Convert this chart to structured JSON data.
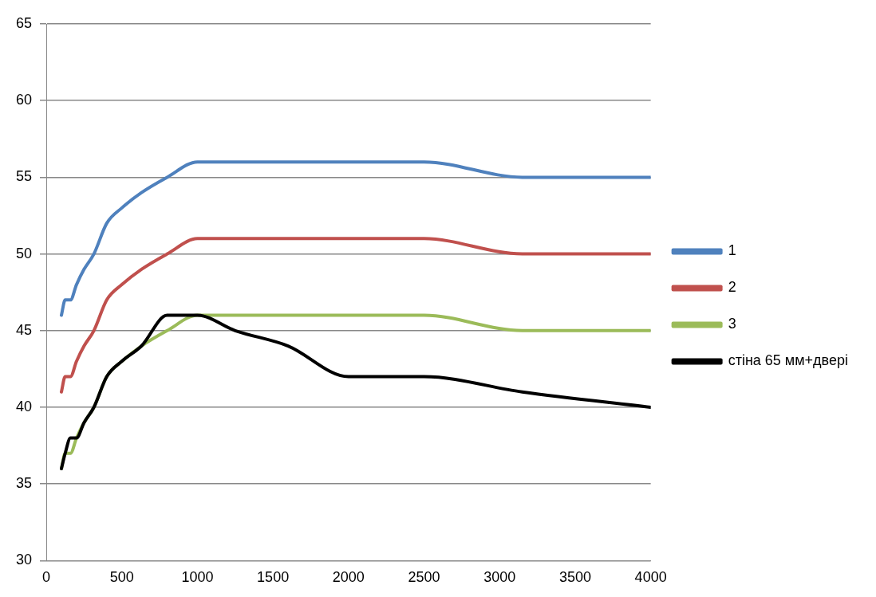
{
  "chart_data": {
    "type": "line",
    "x": [
      100,
      125,
      160,
      200,
      250,
      315,
      400,
      500,
      630,
      800,
      1000,
      1250,
      1600,
      2000,
      2500,
      3150,
      4000
    ],
    "series": [
      {
        "name": "1",
        "color": "#4f81bd",
        "values": [
          46,
          47,
          47,
          48,
          49,
          50,
          52,
          53,
          54,
          55,
          56,
          56,
          56,
          56,
          56,
          55,
          55
        ]
      },
      {
        "name": "2",
        "color": "#c0504d",
        "values": [
          41,
          42,
          42,
          43,
          44,
          45,
          47,
          48,
          49,
          50,
          51,
          51,
          51,
          51,
          51,
          50,
          50
        ]
      },
      {
        "name": "3",
        "color": "#9bbb59",
        "values": [
          36,
          37,
          37,
          38,
          39,
          40,
          42,
          43,
          44,
          45,
          46,
          46,
          46,
          46,
          46,
          45,
          45
        ]
      },
      {
        "name": "стіна 65 мм+двері",
        "color": "#000000",
        "values": [
          36,
          37,
          38,
          38,
          39,
          40,
          42,
          43,
          44,
          46,
          46,
          45,
          44,
          42,
          42,
          41,
          40
        ]
      }
    ],
    "xlim": [
      0,
      4000
    ],
    "xticks": [
      0,
      500,
      1000,
      1500,
      2000,
      2500,
      3000,
      3500,
      4000
    ],
    "ylim": [
      30,
      65
    ],
    "yticks": [
      30,
      35,
      40,
      45,
      50,
      55,
      60,
      65
    ],
    "grid": "y",
    "legend": "right",
    "marker": "none",
    "line_style": "solid"
  }
}
